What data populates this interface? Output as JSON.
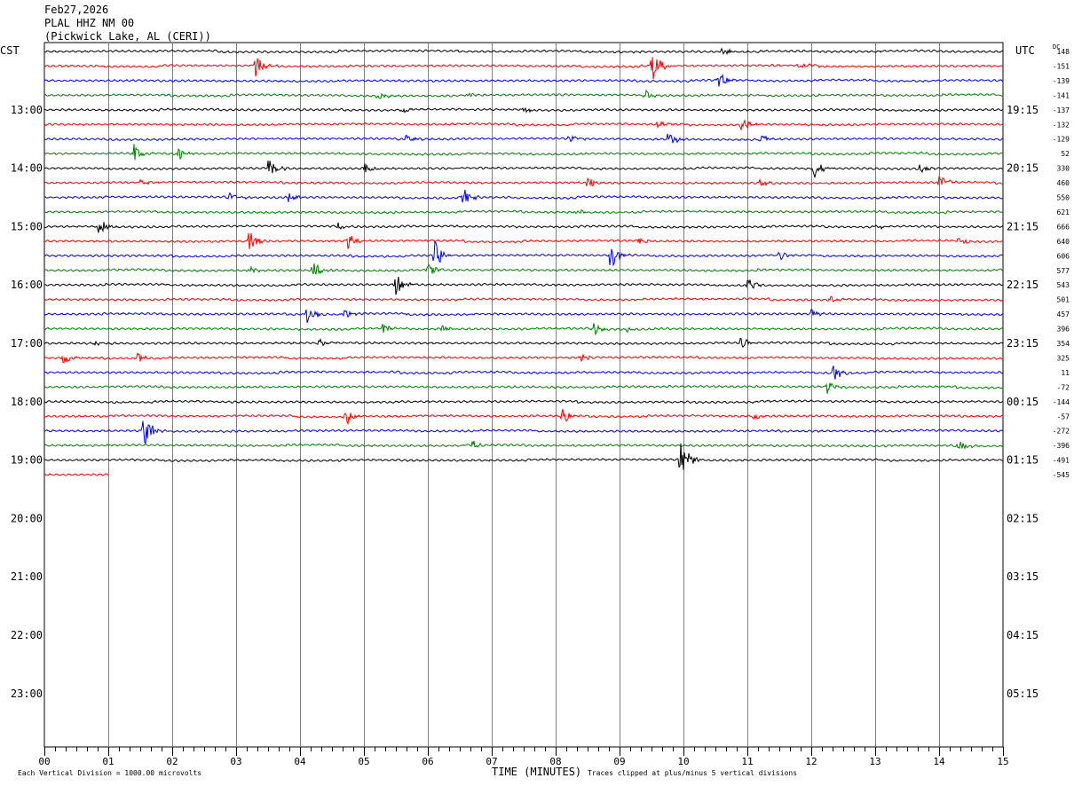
{
  "header": {
    "date": "Feb27,2026",
    "station": "PLAL HHZ NM 00",
    "location": "(Pickwick Lake, AL (CERI))"
  },
  "left_axis_title": "CST",
  "right_axis_title": "UTC",
  "dc_title": "DC",
  "footer": {
    "scale_note": "Each Vertical Division = 1000.00 microvolts",
    "xlabel": "TIME (MINUTES)",
    "clip_note": "Traces clipped at plus/minus 5 vertical divisions"
  },
  "colors": {
    "trace_cycle": [
      "#000000",
      "#ff0000",
      "#0000ff",
      "#008000"
    ],
    "grid": "#808080",
    "axis": "#000000"
  },
  "chart_data": {
    "type": "line",
    "subtype": "helicorder",
    "x": {
      "label": "TIME (MINUTES)",
      "range": [
        0,
        15
      ],
      "ticks": [
        "00",
        "01",
        "02",
        "03",
        "04",
        "05",
        "06",
        "07",
        "08",
        "09",
        "10",
        "11",
        "12",
        "13",
        "14",
        "15"
      ],
      "minor_ticks_per_minute": 6
    },
    "line_interval_minutes": 15,
    "total_lines": 48,
    "hour_labels_left": [
      "13:00",
      "14:00",
      "15:00",
      "16:00",
      "17:00",
      "18:00",
      "19:00",
      "20:00",
      "21:00",
      "22:00",
      "23:00"
    ],
    "hour_labels_right": [
      "19:15",
      "20:15",
      "21:15",
      "22:15",
      "23:15",
      "00:15",
      "01:15",
      "02:15",
      "03:15",
      "04:15",
      "05:15"
    ],
    "dc_offsets": [
      148,
      -151,
      -139,
      -141,
      -137,
      -132,
      -129,
      52,
      330,
      460,
      550,
      621,
      666,
      640,
      606,
      577,
      543,
      501,
      457,
      396,
      354,
      325,
      11,
      -72,
      -144,
      -57,
      -272,
      -396,
      -491,
      -545
    ],
    "traces": [
      {
        "line": 0,
        "color": "black",
        "events": [
          [
            10.6,
            0.6
          ]
        ]
      },
      {
        "line": 1,
        "color": "red",
        "events": [
          [
            3.3,
            1.6
          ],
          [
            9.5,
            3.0
          ],
          [
            11.8,
            0.6
          ]
        ]
      },
      {
        "line": 2,
        "color": "blue",
        "events": [
          [
            10.55,
            1.0
          ]
        ]
      },
      {
        "line": 3,
        "color": "green",
        "events": [
          [
            5.2,
            0.7
          ],
          [
            6.6,
            0.5
          ],
          [
            9.4,
            0.7
          ]
        ]
      },
      {
        "line": 4,
        "color": "black",
        "events": [
          [
            5.6,
            0.6
          ],
          [
            7.5,
            0.4
          ]
        ]
      },
      {
        "line": 5,
        "color": "red",
        "events": [
          [
            9.6,
            0.5
          ],
          [
            10.9,
            1.0
          ]
        ]
      },
      {
        "line": 6,
        "color": "blue",
        "events": [
          [
            5.65,
            0.8
          ],
          [
            8.2,
            0.7
          ],
          [
            9.75,
            1.2
          ],
          [
            11.2,
            0.8
          ]
        ]
      },
      {
        "line": 7,
        "color": "green",
        "events": [
          [
            1.4,
            1.2
          ],
          [
            2.1,
            0.8
          ]
        ]
      },
      {
        "line": 8,
        "color": "black",
        "events": [
          [
            3.5,
            1.6
          ],
          [
            5.0,
            0.8
          ],
          [
            12.05,
            1.5
          ],
          [
            13.7,
            0.6
          ]
        ]
      },
      {
        "line": 9,
        "color": "red",
        "events": [
          [
            1.5,
            0.5
          ],
          [
            8.5,
            0.9
          ],
          [
            11.2,
            0.6
          ],
          [
            14.0,
            1.0
          ]
        ]
      },
      {
        "line": 10,
        "color": "blue",
        "events": [
          [
            2.9,
            0.8
          ],
          [
            3.8,
            0.8
          ],
          [
            6.55,
            1.2
          ]
        ]
      },
      {
        "line": 11,
        "color": "green",
        "events": [
          [
            8.3,
            0.8
          ]
        ]
      },
      {
        "line": 12,
        "color": "black",
        "events": [
          [
            0.85,
            1.2
          ],
          [
            4.6,
            0.6
          ],
          [
            13.0,
            0.6
          ]
        ]
      },
      {
        "line": 13,
        "color": "red",
        "events": [
          [
            3.2,
            1.4
          ],
          [
            4.75,
            1.0
          ],
          [
            9.3,
            0.5
          ],
          [
            14.3,
            0.6
          ]
        ]
      },
      {
        "line": 14,
        "color": "blue",
        "events": [
          [
            6.1,
            2.0
          ],
          [
            8.85,
            2.0
          ],
          [
            11.5,
            0.6
          ]
        ]
      },
      {
        "line": 15,
        "color": "green",
        "events": [
          [
            3.2,
            0.6
          ],
          [
            4.2,
            1.2
          ],
          [
            6.0,
            0.8
          ]
        ]
      },
      {
        "line": 16,
        "color": "black",
        "events": [
          [
            5.5,
            1.5
          ],
          [
            11.0,
            1.2
          ]
        ]
      },
      {
        "line": 17,
        "color": "red",
        "events": [
          [
            12.3,
            0.5
          ]
        ]
      },
      {
        "line": 18,
        "color": "blue",
        "events": [
          [
            4.1,
            1.5
          ],
          [
            4.7,
            0.8
          ],
          [
            12.0,
            0.6
          ]
        ]
      },
      {
        "line": 19,
        "color": "green",
        "events": [
          [
            5.3,
            0.6
          ],
          [
            6.2,
            0.6
          ],
          [
            8.6,
            0.8
          ],
          [
            9.1,
            0.5
          ]
        ]
      },
      {
        "line": 20,
        "color": "black",
        "events": [
          [
            0.8,
            0.5
          ],
          [
            4.3,
            0.5
          ],
          [
            10.9,
            0.8
          ]
        ]
      },
      {
        "line": 21,
        "color": "red",
        "events": [
          [
            0.3,
            1.0
          ],
          [
            1.45,
            0.8
          ],
          [
            8.4,
            0.6
          ]
        ]
      },
      {
        "line": 22,
        "color": "blue",
        "events": [
          [
            12.35,
            1.2
          ]
        ]
      },
      {
        "line": 23,
        "color": "green",
        "events": [
          [
            12.25,
            0.8
          ]
        ]
      },
      {
        "line": 24,
        "color": "black",
        "events": []
      },
      {
        "line": 25,
        "color": "red",
        "events": [
          [
            4.7,
            1.5
          ],
          [
            8.1,
            1.2
          ],
          [
            11.1,
            0.6
          ]
        ]
      },
      {
        "line": 26,
        "color": "blue",
        "events": [
          [
            1.55,
            2.5
          ]
        ]
      },
      {
        "line": 27,
        "color": "green",
        "events": [
          [
            6.7,
            0.5
          ],
          [
            14.3,
            0.8
          ]
        ]
      },
      {
        "line": 28,
        "color": "black",
        "events": [
          [
            9.95,
            3.0
          ]
        ]
      },
      {
        "line": 29,
        "color": "red",
        "events": [],
        "end_minute": 1.0
      }
    ]
  }
}
